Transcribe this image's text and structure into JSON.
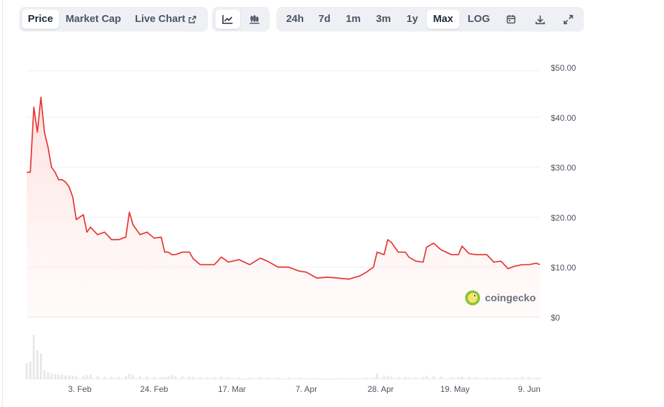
{
  "toolbar": {
    "type_tabs": [
      "Price",
      "Market Cap",
      "Live Chart"
    ],
    "active_type": "Price",
    "ranges": [
      "24h",
      "7d",
      "1m",
      "3m",
      "1y",
      "Max",
      "LOG"
    ],
    "active_range": "Max"
  },
  "icons": [
    "external-link-icon",
    "line-chart-icon",
    "candlestick-icon",
    "calendar-icon",
    "download-icon",
    "expand-icon"
  ],
  "watermark": "coingecko",
  "colors": {
    "line": "#e53935",
    "fill_top": "#fde0dd",
    "volume": "#e5e7eb",
    "grid": "#eeeeee"
  },
  "chart_data": {
    "type": "area",
    "x_range": [
      "2024-01-19",
      "2024-06-12"
    ],
    "ylim": [
      0,
      50
    ],
    "yticks": [
      "$50.00",
      "$40.00",
      "$30.00",
      "$20.00",
      "$10.00",
      "$0"
    ],
    "ytick_values": [
      50,
      40,
      30,
      20,
      10,
      0
    ],
    "xticks": [
      {
        "label": "3. Feb",
        "date": "2024-02-03"
      },
      {
        "label": "24. Feb",
        "date": "2024-02-24"
      },
      {
        "label": "17. Mar",
        "date": "2024-03-17"
      },
      {
        "label": "7. Apr",
        "date": "2024-04-07"
      },
      {
        "label": "28. Apr",
        "date": "2024-04-28"
      },
      {
        "label": "19. May",
        "date": "2024-05-19"
      },
      {
        "label": "9. Jun",
        "date": "2024-06-09"
      }
    ],
    "series": [
      {
        "x": [
          "2024-01-19",
          "2024-01-20",
          "2024-01-21",
          "2024-01-22",
          "2024-01-23",
          "2024-01-24",
          "2024-01-25",
          "2024-01-26",
          "2024-01-27",
          "2024-01-28",
          "2024-01-29",
          "2024-01-30",
          "2024-01-31",
          "2024-02-01",
          "2024-02-02",
          "2024-02-04",
          "2024-02-05",
          "2024-02-06",
          "2024-02-08",
          "2024-02-10",
          "2024-02-12",
          "2024-02-14",
          "2024-02-16",
          "2024-02-17",
          "2024-02-18",
          "2024-02-20",
          "2024-02-22",
          "2024-02-24",
          "2024-02-26",
          "2024-02-27",
          "2024-02-28",
          "2024-02-29",
          "2024-03-01",
          "2024-03-03",
          "2024-03-05",
          "2024-03-06",
          "2024-03-08",
          "2024-03-10",
          "2024-03-12",
          "2024-03-14",
          "2024-03-16",
          "2024-03-19",
          "2024-03-22",
          "2024-03-25",
          "2024-03-27",
          "2024-03-30",
          "2024-04-02",
          "2024-04-05",
          "2024-04-07",
          "2024-04-10",
          "2024-04-13",
          "2024-04-16",
          "2024-04-19",
          "2024-04-22",
          "2024-04-24",
          "2024-04-26",
          "2024-04-27",
          "2024-04-29",
          "2024-04-30",
          "2024-05-01",
          "2024-05-03",
          "2024-05-05",
          "2024-05-06",
          "2024-05-08",
          "2024-05-10",
          "2024-05-11",
          "2024-05-13",
          "2024-05-15",
          "2024-05-18",
          "2024-05-20",
          "2024-05-21",
          "2024-05-23",
          "2024-05-25",
          "2024-05-28",
          "2024-05-30",
          "2024-06-01",
          "2024-06-03",
          "2024-06-05",
          "2024-06-07",
          "2024-06-09",
          "2024-06-11",
          "2024-06-12"
        ],
        "y": [
          29,
          29,
          42,
          37,
          44,
          37,
          34,
          30,
          29,
          27.5,
          27.5,
          27,
          26,
          24,
          19.5,
          20.5,
          17,
          18,
          16.5,
          17,
          15.5,
          15.5,
          16,
          21,
          18.5,
          16.5,
          17,
          15.8,
          16,
          13,
          13,
          12.5,
          12.5,
          13,
          13,
          11.7,
          10.5,
          10.5,
          10.5,
          12,
          11,
          11.5,
          10.5,
          11.8,
          11.2,
          10,
          10,
          9.2,
          9,
          7.8,
          8,
          7.8,
          7.6,
          8.2,
          9,
          10,
          13,
          12.5,
          15.5,
          15,
          13,
          13,
          12,
          11.2,
          11,
          14,
          14.8,
          13.5,
          12.5,
          12.5,
          14.2,
          12.7,
          12.5,
          12.5,
          11,
          11.2,
          9.7,
          10.2,
          10.5,
          10.5,
          10.8,
          10.5
        ]
      }
    ],
    "volume_relative": [
      0.36,
      0.4,
      1.0,
      0.65,
      0.58,
      0.2,
      0.14,
      0.12,
      0.11,
      0.1,
      0.09,
      0.08,
      0.08,
      0.07,
      0.06,
      0.07,
      0.09,
      0.1,
      0.06,
      0.05,
      0.05,
      0.04,
      0.06,
      0.12,
      0.09,
      0.06,
      0.05,
      0.04,
      0.04,
      0.05,
      0.06,
      0.09,
      0.07,
      0.06,
      0.05,
      0.04,
      0.04,
      0.03,
      0.04,
      0.05,
      0.04,
      0.03,
      0.03,
      0.04,
      0.03,
      0.03,
      0.03,
      0.03,
      0.02,
      0.02,
      0.02,
      0.02,
      0.02,
      0.02,
      0.03,
      0.03,
      0.12,
      0.08,
      0.06,
      0.05,
      0.04,
      0.04,
      0.03,
      0.03,
      0.04,
      0.07,
      0.06,
      0.05,
      0.04,
      0.04,
      0.05,
      0.04,
      0.04,
      0.03,
      0.03,
      0.03,
      0.03,
      0.03,
      0.05,
      0.04,
      0.03,
      0.03
    ]
  }
}
